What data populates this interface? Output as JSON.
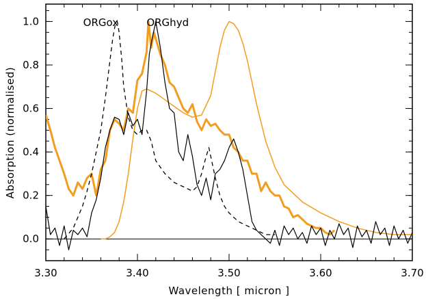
{
  "chart_data": {
    "type": "line",
    "title": "",
    "xlabel": "Wavelength [ micron ]",
    "ylabel": "Absorption (normalised)",
    "xlim": [
      3.3,
      3.7
    ],
    "ylim": [
      -0.1,
      1.08
    ],
    "xticks": [
      "3.30",
      "3.40",
      "3.50",
      "3.60",
      "3.70"
    ],
    "yticks": [
      "0.0",
      "0.2",
      "0.4",
      "0.6",
      "0.8",
      "1.0"
    ],
    "xtick_values": [
      3.3,
      3.4,
      3.5,
      3.6,
      3.7
    ],
    "ytick_values": [
      0.0,
      0.2,
      0.4,
      0.6,
      0.8,
      1.0
    ],
    "annotations": [
      {
        "text": "ORGox",
        "x": 3.36,
        "y": 0.98
      },
      {
        "text": "ORGhyd",
        "x": 3.433,
        "y": 0.98
      }
    ],
    "series": [
      {
        "style": "solid-orange-thick",
        "color": "#F39C1E",
        "x": [
          3.3,
          3.305,
          3.31,
          3.315,
          3.32,
          3.325,
          3.33,
          3.335,
          3.34,
          3.345,
          3.35,
          3.355,
          3.36,
          3.365,
          3.37,
          3.375,
          3.38,
          3.385,
          3.39,
          3.395,
          3.4,
          3.405,
          3.41,
          3.412,
          3.415,
          3.418,
          3.42,
          3.425,
          3.43,
          3.435,
          3.44,
          3.445,
          3.45,
          3.455,
          3.46,
          3.465,
          3.47,
          3.475,
          3.48,
          3.485,
          3.49,
          3.495,
          3.5,
          3.505,
          3.51,
          3.515,
          3.52,
          3.525,
          3.53,
          3.535,
          3.54,
          3.545,
          3.55,
          3.555,
          3.56,
          3.565,
          3.57,
          3.575,
          3.58,
          3.585,
          3.59,
          3.595,
          3.6,
          3.605,
          3.61,
          3.615
        ],
        "y": [
          0.57,
          0.5,
          0.42,
          0.36,
          0.3,
          0.23,
          0.2,
          0.26,
          0.23,
          0.28,
          0.3,
          0.2,
          0.32,
          0.36,
          0.5,
          0.55,
          0.53,
          0.5,
          0.6,
          0.58,
          0.73,
          0.76,
          0.86,
          1.0,
          0.88,
          0.95,
          0.92,
          0.85,
          0.8,
          0.72,
          0.7,
          0.65,
          0.6,
          0.58,
          0.62,
          0.54,
          0.5,
          0.55,
          0.52,
          0.53,
          0.5,
          0.48,
          0.48,
          0.42,
          0.4,
          0.36,
          0.36,
          0.3,
          0.3,
          0.22,
          0.26,
          0.22,
          0.2,
          0.2,
          0.15,
          0.14,
          0.1,
          0.11,
          0.09,
          0.07,
          0.06,
          0.05,
          0.05,
          0.03,
          0.02,
          0.04
        ]
      },
      {
        "style": "solid-orange-thin",
        "color": "#F39C1E",
        "x": [
          3.36,
          3.365,
          3.37,
          3.375,
          3.38,
          3.385,
          3.39,
          3.395,
          3.4,
          3.405,
          3.41,
          3.415,
          3.42,
          3.43,
          3.44,
          3.45,
          3.46,
          3.47,
          3.48,
          3.485,
          3.49,
          3.495,
          3.5,
          3.505,
          3.51,
          3.515,
          3.52,
          3.525,
          3.53,
          3.54,
          3.55,
          3.56,
          3.58,
          3.6,
          3.62,
          3.64,
          3.66,
          3.68,
          3.7
        ],
        "y": [
          0.0,
          0.0,
          0.01,
          0.03,
          0.08,
          0.17,
          0.3,
          0.46,
          0.6,
          0.68,
          0.69,
          0.68,
          0.67,
          0.64,
          0.61,
          0.58,
          0.56,
          0.57,
          0.66,
          0.77,
          0.88,
          0.96,
          1.0,
          0.99,
          0.96,
          0.9,
          0.82,
          0.72,
          0.62,
          0.45,
          0.33,
          0.25,
          0.17,
          0.12,
          0.08,
          0.05,
          0.03,
          0.02,
          0.02
        ]
      },
      {
        "style": "dashed-black",
        "color": "#000000",
        "x": [
          3.32,
          3.33,
          3.34,
          3.345,
          3.35,
          3.355,
          3.36,
          3.365,
          3.37,
          3.373,
          3.376,
          3.378,
          3.38,
          3.383,
          3.385,
          3.39,
          3.395,
          3.4,
          3.405,
          3.41,
          3.415,
          3.42,
          3.43,
          3.44,
          3.45,
          3.46,
          3.465,
          3.47,
          3.475,
          3.478,
          3.48,
          3.485,
          3.49,
          3.495,
          3.5,
          3.51,
          3.52,
          3.53,
          3.54,
          3.55
        ],
        "y": [
          0.0,
          0.05,
          0.15,
          0.22,
          0.3,
          0.4,
          0.5,
          0.65,
          0.82,
          0.92,
          0.99,
          1.0,
          0.95,
          0.82,
          0.7,
          0.56,
          0.5,
          0.48,
          0.5,
          0.5,
          0.45,
          0.36,
          0.3,
          0.26,
          0.24,
          0.22,
          0.24,
          0.3,
          0.38,
          0.42,
          0.38,
          0.28,
          0.2,
          0.15,
          0.12,
          0.08,
          0.06,
          0.04,
          0.02,
          0.02
        ]
      },
      {
        "style": "solid-black-noisy",
        "color": "#000000",
        "x": [
          3.3,
          3.305,
          3.31,
          3.315,
          3.32,
          3.325,
          3.33,
          3.335,
          3.34,
          3.345,
          3.35,
          3.355,
          3.36,
          3.365,
          3.37,
          3.375,
          3.38,
          3.385,
          3.39,
          3.395,
          3.4,
          3.405,
          3.41,
          3.413,
          3.416,
          3.419,
          3.42,
          3.425,
          3.43,
          3.435,
          3.44,
          3.445,
          3.45,
          3.455,
          3.46,
          3.465,
          3.47,
          3.475,
          3.48,
          3.485,
          3.49,
          3.495,
          3.5,
          3.505,
          3.51,
          3.515,
          3.52,
          3.525,
          3.53,
          3.535,
          3.54,
          3.545,
          3.55,
          3.555,
          3.56,
          3.565,
          3.57,
          3.575,
          3.58,
          3.585,
          3.59,
          3.595,
          3.6,
          3.605,
          3.61,
          3.615,
          3.62,
          3.625,
          3.63,
          3.635,
          3.64,
          3.645,
          3.65,
          3.655,
          3.66,
          3.665,
          3.67,
          3.675,
          3.68,
          3.685,
          3.69,
          3.695,
          3.7
        ],
        "y": [
          0.15,
          0.02,
          0.05,
          -0.03,
          0.06,
          -0.05,
          0.04,
          0.02,
          0.05,
          0.01,
          0.12,
          0.18,
          0.28,
          0.42,
          0.5,
          0.56,
          0.55,
          0.48,
          0.58,
          0.52,
          0.55,
          0.48,
          0.68,
          0.85,
          0.92,
          0.98,
          1.0,
          0.88,
          0.72,
          0.6,
          0.58,
          0.4,
          0.36,
          0.48,
          0.38,
          0.25,
          0.2,
          0.28,
          0.18,
          0.3,
          0.32,
          0.36,
          0.42,
          0.46,
          0.4,
          0.32,
          0.2,
          0.08,
          0.04,
          0.02,
          0.0,
          -0.02,
          0.04,
          -0.03,
          0.06,
          0.02,
          0.05,
          0.0,
          0.03,
          -0.02,
          0.06,
          0.02,
          0.05,
          -0.03,
          0.04,
          0.0,
          0.07,
          0.02,
          0.05,
          -0.04,
          0.06,
          0.01,
          0.04,
          -0.02,
          0.08,
          0.02,
          0.05,
          -0.03,
          0.06,
          0.0,
          0.04,
          -0.02,
          0.03
        ]
      }
    ],
    "zero_line": 0.0,
    "grid": false,
    "legend": "none"
  }
}
